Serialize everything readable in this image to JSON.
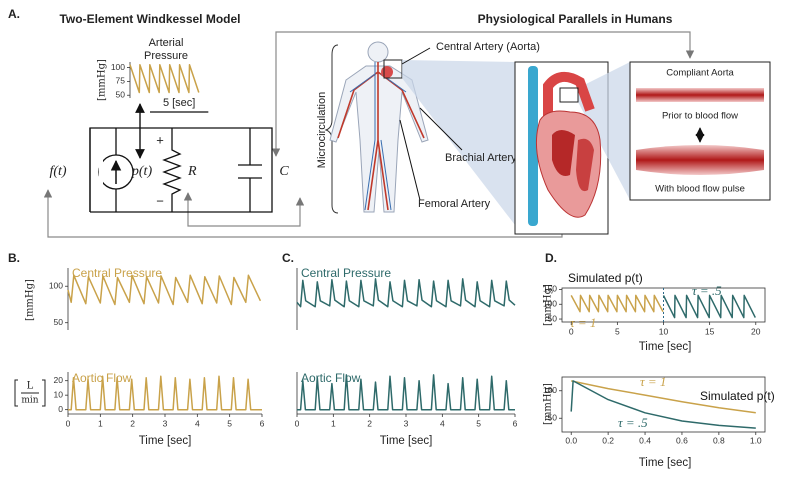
{
  "figure": {
    "panel_labels": [
      "A.",
      "B.",
      "C.",
      "D."
    ],
    "model_title": "Two-Element Windkessel Model",
    "parallels_title": "Physiological Parallels in Humans",
    "source_label": "f(t)",
    "pressure_label": "p(t)",
    "resistor_label": "R",
    "capacitor_label": "C",
    "plus": "+",
    "minus": "−",
    "microcirculation": "Microcirculation",
    "central_artery": "Central Artery (Aorta)",
    "brachial_artery": "Brachial Artery",
    "femoral_artery": "Femoral Artery",
    "compliant_aorta": "Compliant Aorta",
    "prior": "Prior to blood flow",
    "with_pulse": "With blood flow pulse"
  },
  "chart_data": [
    {
      "type": "line",
      "title_lines": [
        "Arterial",
        "Pressure"
      ],
      "ylabel": "[mmHg]",
      "xlim": [
        0,
        6
      ],
      "ylim": [
        45,
        110
      ],
      "yticks": [
        50,
        75,
        100
      ],
      "scale_bar": {
        "value": 5,
        "label": "5 [sec]"
      },
      "series": [
        {
          "color": "#c9a24a",
          "x": [
            0,
            0.8,
            0.85,
            1.65,
            1.7,
            2.5,
            2.55,
            3.35,
            3.4,
            4.2,
            4.25,
            5.05,
            5.1,
            5.9
          ],
          "values": [
            105,
            55,
            105,
            55,
            105,
            55,
            105,
            55,
            105,
            55,
            105,
            55,
            105,
            55
          ]
        }
      ]
    },
    {
      "type": "line",
      "title": "Central Pressure",
      "title_color": "#c9a24a",
      "ylabel": "[mmHg]",
      "xlim": [
        0,
        6
      ],
      "ylim": [
        40,
        125
      ],
      "yticks": [
        50,
        100
      ],
      "series": [
        {
          "color": "#c9a24a",
          "x": [
            0,
            0.1,
            0.18,
            0.55,
            0.63,
            1.0,
            1.08,
            1.45,
            1.53,
            1.9,
            1.98,
            2.35,
            2.43,
            2.8,
            2.88,
            3.25,
            3.33,
            3.7,
            3.78,
            4.15,
            4.23,
            4.6,
            4.68,
            5.05,
            5.13,
            5.5,
            5.58,
            5.95
          ],
          "values": [
            95,
            78,
            115,
            76,
            113,
            77,
            114,
            75,
            112,
            78,
            115,
            76,
            113,
            77,
            114,
            75,
            112,
            78,
            115,
            76,
            113,
            77,
            114,
            75,
            112,
            78,
            115,
            80
          ]
        }
      ]
    },
    {
      "type": "line",
      "title": "Aortic Flow",
      "title_color": "#c9a24a",
      "ylabel": {
        "numerator": "L",
        "denominator": "min"
      },
      "xlabel": "Time [sec]",
      "xlim": [
        0,
        6
      ],
      "ylim": [
        -3,
        26
      ],
      "yticks": [
        0,
        10,
        20
      ],
      "xticks": [
        0,
        1,
        2,
        3,
        4,
        5,
        6
      ],
      "series": [
        {
          "color": "#c9a24a",
          "x": [
            0,
            0.1,
            0.17,
            0.25,
            0.55,
            0.62,
            0.7,
            1.0,
            1.07,
            1.15,
            1.45,
            1.52,
            1.6,
            1.9,
            1.97,
            2.05,
            2.35,
            2.42,
            2.5,
            2.8,
            2.87,
            2.95,
            3.25,
            3.32,
            3.4,
            3.7,
            3.77,
            3.85,
            4.15,
            4.22,
            4.3,
            4.6,
            4.67,
            4.75,
            5.05,
            5.12,
            5.2,
            5.5,
            5.57,
            5.65,
            6.0
          ],
          "values": [
            0,
            0,
            22,
            0,
            0,
            21,
            0,
            0,
            23,
            0,
            0,
            22,
            0,
            0,
            21,
            0,
            0,
            22,
            0,
            0,
            23,
            0,
            0,
            22,
            0,
            0,
            21,
            0,
            0,
            22,
            0,
            0,
            23,
            0,
            0,
            22,
            0,
            0,
            21,
            0,
            0
          ]
        }
      ]
    },
    {
      "type": "line",
      "title": "Central Pressure",
      "title_color": "#2e6a6a",
      "xlim": [
        0,
        6
      ],
      "ylim": [
        40,
        125
      ],
      "series": [
        {
          "color": "#2e6a6a",
          "x": [
            0,
            0.1,
            0.16,
            0.24,
            0.5,
            0.56,
            0.64,
            0.9,
            0.96,
            1.04,
            1.3,
            1.36,
            1.44,
            1.7,
            1.76,
            1.84,
            2.1,
            2.16,
            2.24,
            2.5,
            2.56,
            2.64,
            2.9,
            2.96,
            3.04,
            3.3,
            3.36,
            3.44,
            3.7,
            3.76,
            3.84,
            4.1,
            4.16,
            4.24,
            4.5,
            4.56,
            4.64,
            4.9,
            4.96,
            5.04,
            5.3,
            5.36,
            5.44,
            5.7,
            5.76,
            5.84,
            6.0
          ],
          "values": [
            78,
            72,
            108,
            80,
            72,
            106,
            80,
            73,
            109,
            81,
            72,
            107,
            80,
            72,
            108,
            80,
            73,
            110,
            81,
            72,
            106,
            80,
            72,
            108,
            80,
            73,
            109,
            81,
            72,
            107,
            80,
            72,
            108,
            80,
            73,
            110,
            81,
            72,
            106,
            80,
            72,
            108,
            80,
            73,
            107,
            81,
            74
          ]
        }
      ]
    },
    {
      "type": "line",
      "title": "Aortic Flow",
      "title_color": "#2e6a6a",
      "xlabel": "Time [sec]",
      "xlim": [
        0,
        6
      ],
      "ylim": [
        -3,
        26
      ],
      "xticks": [
        0,
        1,
        2,
        3,
        4,
        5,
        6
      ],
      "series": [
        {
          "color": "#2e6a6a",
          "x": [
            0,
            0.1,
            0.16,
            0.23,
            0.5,
            0.56,
            0.63,
            0.9,
            0.96,
            1.03,
            1.3,
            1.36,
            1.43,
            1.7,
            1.76,
            1.83,
            2.1,
            2.16,
            2.23,
            2.5,
            2.56,
            2.63,
            2.9,
            2.96,
            3.03,
            3.3,
            3.36,
            3.43,
            3.7,
            3.76,
            3.83,
            4.1,
            4.16,
            4.23,
            4.5,
            4.56,
            4.63,
            4.9,
            4.96,
            5.03,
            5.3,
            5.36,
            5.43,
            5.7,
            5.76,
            5.83,
            6.0
          ],
          "values": [
            0,
            0,
            20,
            0,
            0,
            22,
            0,
            0,
            18,
            0,
            0,
            24,
            0,
            0,
            21,
            0,
            0,
            19,
            0,
            0,
            23,
            0,
            0,
            22,
            0,
            0,
            20,
            0,
            0,
            24,
            0,
            0,
            18,
            0,
            0,
            22,
            0,
            0,
            21,
            0,
            0,
            23,
            0,
            0,
            20,
            0,
            0
          ]
        }
      ]
    },
    {
      "type": "line",
      "title": "Simulated p(t)",
      "ylabel": "[mmHg]",
      "xlabel": "Time [sec]",
      "frame": true,
      "xlim": [
        -1,
        21
      ],
      "ylim": [
        40,
        155
      ],
      "yticks": [
        50,
        100,
        150
      ],
      "xticks": [
        0,
        5,
        10,
        15,
        20
      ],
      "divider_x": 10,
      "series": [
        {
          "name": "τ = 1",
          "color": "#c9a24a",
          "x": [
            0,
            0.95,
            1,
            1.95,
            2,
            2.95,
            3,
            3.95,
            4,
            4.95,
            5,
            5.95,
            6,
            6.95,
            7,
            7.95,
            8,
            8.95,
            9,
            9.95
          ],
          "values": [
            130,
            75,
            130,
            75,
            130,
            75,
            130,
            75,
            130,
            75,
            130,
            75,
            130,
            75,
            130,
            75,
            130,
            75,
            130,
            75
          ]
        },
        {
          "name": "τ = .5",
          "color": "#2e6a6a",
          "x": [
            10,
            11.2,
            11.25,
            12.45,
            12.5,
            13.7,
            13.75,
            14.95,
            15,
            16.2,
            16.25,
            17.45,
            17.5,
            18.7,
            18.75,
            19.95
          ],
          "values": [
            130,
            55,
            130,
            55,
            130,
            55,
            130,
            55,
            130,
            55,
            130,
            55,
            130,
            55,
            130,
            55
          ]
        }
      ]
    },
    {
      "type": "line",
      "title": "Simulated p(t)",
      "ylabel": "[mmHg]",
      "xlabel": "Time [sec]",
      "frame": true,
      "xlim": [
        -0.05,
        1.05
      ],
      "ylim": [
        25,
        125
      ],
      "yticks": [
        50,
        100
      ],
      "xticks": [
        {
          "value": 0,
          "label": "0.0"
        },
        0.2,
        0.4,
        0.6,
        0.8,
        {
          "value": 1,
          "label": "1.0"
        }
      ],
      "series": [
        {
          "name": "τ = 1",
          "color": "#c9a24a",
          "x": [
            0,
            0.2,
            0.4,
            0.6,
            0.8,
            1.0
          ],
          "values": [
            118,
            104,
            92,
            80,
            69,
            60
          ]
        },
        {
          "name": "τ = .5",
          "color": "#2e6a6a",
          "x": [
            0,
            0.01,
            0.2,
            0.4,
            0.6,
            0.8,
            1.0
          ],
          "values": [
            62,
            118,
            84,
            60,
            45,
            37,
            32
          ]
        }
      ]
    }
  ]
}
